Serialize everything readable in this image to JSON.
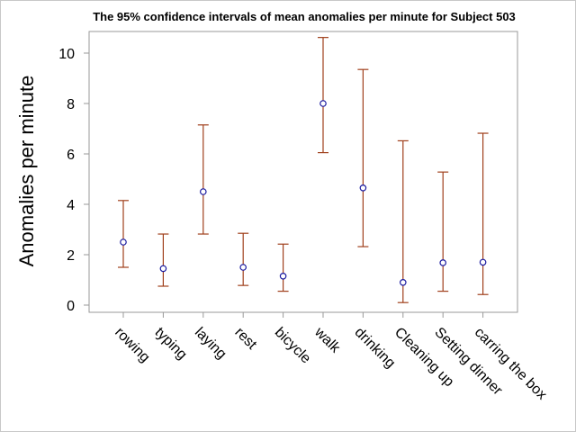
{
  "chart_data": {
    "type": "scatter",
    "title": "The 95% confidence intervals of mean anomalies per minute for Subject 503",
    "xlabel": "",
    "ylabel": "Anomalies per minute",
    "ylim": [
      -0.3,
      10.9
    ],
    "yticks": [
      0,
      2,
      4,
      6,
      8,
      10
    ],
    "grid": false,
    "legend": "none",
    "categories": [
      "rowing",
      "typing",
      "laying",
      "rest",
      "bicycle",
      "walk",
      "drinking",
      "Cleaning up",
      "Setting dinner",
      "carring the box"
    ],
    "series": [
      {
        "mean": [
          2.5,
          1.45,
          4.5,
          1.5,
          1.15,
          8.0,
          4.65,
          0.9,
          1.68,
          1.7
        ],
        "lower": [
          1.5,
          0.75,
          2.82,
          0.78,
          0.55,
          6.05,
          2.32,
          0.1,
          0.55,
          0.42
        ],
        "upper": [
          4.15,
          2.82,
          7.15,
          2.85,
          2.42,
          10.62,
          9.35,
          6.52,
          5.28,
          6.82
        ]
      }
    ],
    "colors": {
      "errorbar": "#a0401c",
      "marker": "#1a1aa0",
      "axis": "#999999"
    }
  }
}
